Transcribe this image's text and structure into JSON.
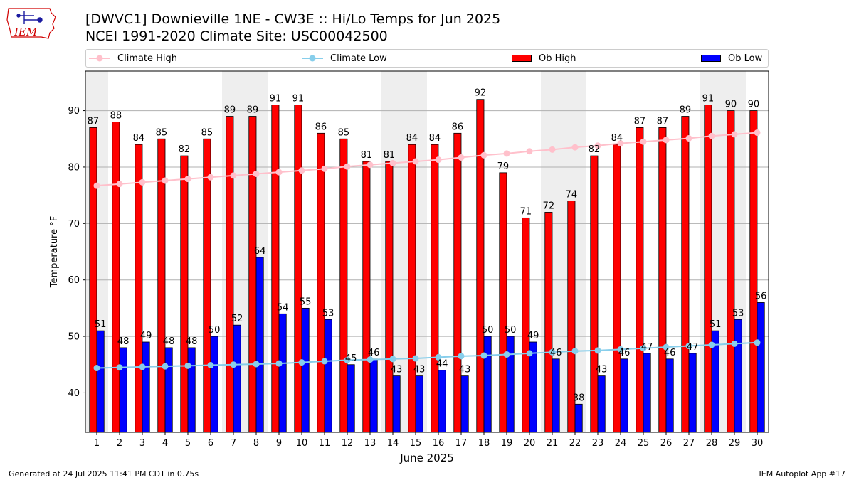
{
  "header": {
    "title_line1": "[DWVC1] Downieville 1NE - CW3E :: Hi/Lo Temps for Jun 2025",
    "title_line2": "NCEI 1991-2020 Climate Site: USC00042500"
  },
  "logo": {
    "text": "IEM",
    "icon": "iowa-state-outline-logo"
  },
  "footer": {
    "generated": "Generated at 24 Jul 2025 11:41 PM CDT in 0.75s",
    "app": "IEM Autoplot App #17"
  },
  "colors": {
    "ob_high": "#ff0000",
    "ob_low": "#0000ff",
    "climate_high": "#ffc0cb",
    "climate_low": "#87ceeb",
    "weekend_shade": "#eeeeee",
    "grid": "#b0b0b0"
  },
  "chart_data": {
    "type": "bar",
    "xlabel": "June 2025",
    "ylabel": "Temperature °F",
    "ylim": [
      33,
      97
    ],
    "yticks": [
      40,
      50,
      60,
      70,
      80,
      90
    ],
    "grid": true,
    "legend_position": "top",
    "categories": [
      "1",
      "2",
      "3",
      "4",
      "5",
      "6",
      "7",
      "8",
      "9",
      "10",
      "11",
      "12",
      "13",
      "14",
      "15",
      "16",
      "17",
      "18",
      "19",
      "20",
      "21",
      "22",
      "23",
      "24",
      "25",
      "26",
      "27",
      "28",
      "29",
      "30"
    ],
    "shaded_days": [
      1,
      7,
      8,
      14,
      15,
      21,
      22,
      28,
      29
    ],
    "series": [
      {
        "name": "Ob High",
        "kind": "bar",
        "values": [
          87,
          88,
          84,
          85,
          82,
          85,
          89,
          89,
          91,
          91,
          86,
          85,
          81,
          81,
          84,
          84,
          86,
          92,
          79,
          71,
          72,
          74,
          82,
          84,
          87,
          87,
          89,
          91,
          90,
          90
        ],
        "labels": [
          "87",
          "88",
          "84",
          "85",
          "82",
          "85",
          "89",
          "89",
          "91",
          "91",
          "86",
          "85",
          "81",
          "81",
          "84",
          "84",
          "86",
          "92",
          "79",
          "71",
          "72",
          "74",
          "82",
          "84",
          "87",
          "87",
          "89",
          "91",
          "90",
          "90"
        ]
      },
      {
        "name": "Ob Low",
        "kind": "bar",
        "values": [
          51,
          48,
          49,
          48,
          48,
          50,
          52,
          64,
          54,
          55,
          53,
          45,
          46,
          43,
          43,
          44,
          43,
          50,
          50,
          49,
          46,
          38,
          43,
          46,
          47,
          46,
          47,
          51,
          53,
          56
        ],
        "labels": [
          "51",
          "48",
          "49",
          "48",
          "48",
          "50",
          "52",
          "64",
          "54",
          "55",
          "53",
          "45",
          "46",
          "43",
          "43",
          "44",
          "43",
          "50",
          "50",
          "49",
          "46",
          "38",
          "43",
          "46",
          "47",
          "46",
          "47",
          "51",
          "53",
          "56"
        ]
      },
      {
        "name": "Climate High",
        "kind": "line",
        "values": [
          76.7,
          77.0,
          77.3,
          77.6,
          77.9,
          78.2,
          78.5,
          78.8,
          79.1,
          79.4,
          79.7,
          80.1,
          80.4,
          80.7,
          81.0,
          81.3,
          81.7,
          82.1,
          82.4,
          82.8,
          83.1,
          83.5,
          83.8,
          84.2,
          84.5,
          84.8,
          85.1,
          85.5,
          85.8,
          86.1
        ]
      },
      {
        "name": "Climate Low",
        "kind": "line",
        "values": [
          44.4,
          44.5,
          44.6,
          44.7,
          44.8,
          44.9,
          45.0,
          45.1,
          45.2,
          45.4,
          45.6,
          45.8,
          45.9,
          46.0,
          46.1,
          46.3,
          46.5,
          46.6,
          46.8,
          47.0,
          47.2,
          47.4,
          47.5,
          47.7,
          47.9,
          48.1,
          48.3,
          48.5,
          48.7,
          48.9
        ]
      }
    ]
  }
}
